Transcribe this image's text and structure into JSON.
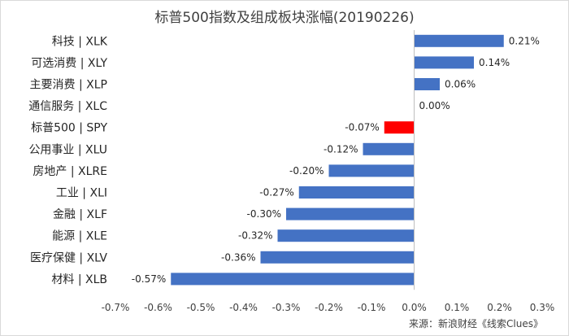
{
  "chart_data": {
    "type": "bar",
    "orientation": "horizontal",
    "title": "标普500指数及组成板块涨幅(20190226)",
    "categories": [
      "科技 | XLK",
      "可选消费 | XLY",
      "主要消费 | XLP",
      "通信服务 | XLC",
      "标普500 | SPY",
      "公用事业 | XLU",
      "房地产 | XLRE",
      "工业 | XLI",
      "金融 | XLF",
      "能源 | XLE",
      "医疗保健 | XLV",
      "材料 | XLB"
    ],
    "values": [
      0.21,
      0.14,
      0.06,
      0.0,
      -0.07,
      -0.12,
      -0.2,
      -0.27,
      -0.3,
      -0.32,
      -0.36,
      -0.57
    ],
    "data_labels": [
      "0.21%",
      "0.14%",
      "0.06%",
      "0.00%",
      "-0.07%",
      "-0.12%",
      "-0.20%",
      "-0.27%",
      "-0.30%",
      "-0.32%",
      "-0.36%",
      "-0.57%"
    ],
    "xlim": [
      -0.7,
      0.3
    ],
    "x_ticks": [
      -0.7,
      -0.6,
      -0.5,
      -0.4,
      -0.3,
      -0.2,
      -0.1,
      0.0,
      0.1,
      0.2,
      0.3
    ],
    "x_tick_labels": [
      "-0.7%",
      "-0.6%",
      "-0.5%",
      "-0.4%",
      "-0.3%",
      "-0.2%",
      "-0.1%",
      "0.0%",
      "0.1%",
      "0.2%",
      "0.3%"
    ],
    "bar_color": "#4472c4",
    "highlight_color": "#ff0000",
    "highlight_category": "标普500 | SPY",
    "grid": false,
    "legend": "none"
  },
  "source": "来源：新浪财经《线索Clues》"
}
